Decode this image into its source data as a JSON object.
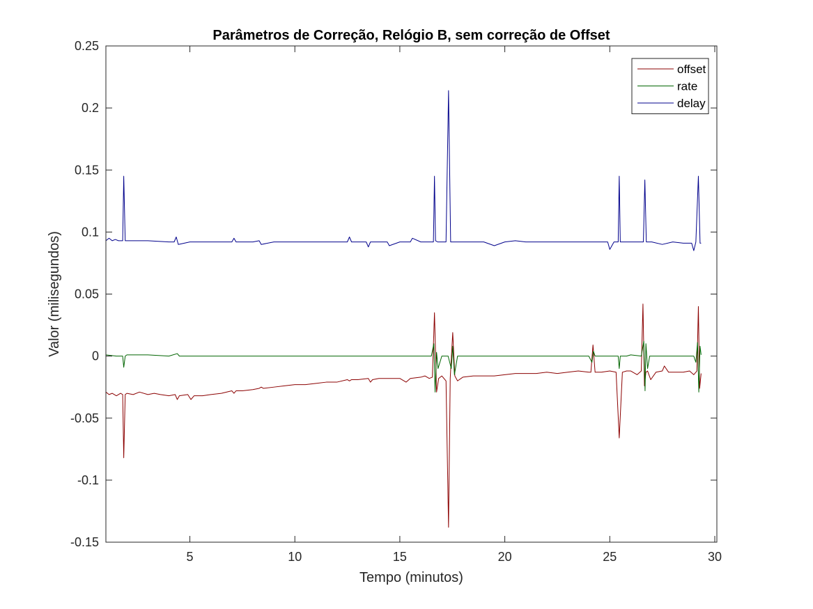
{
  "chart_data": {
    "type": "line",
    "title": "Parâmetros de Correção, Relógio B, sem correção de Offset",
    "xlabel": "Tempo (minutos)",
    "ylabel": "Valor (milisegundos)",
    "xlim": [
      1,
      30.1
    ],
    "ylim": [
      -0.15,
      0.25
    ],
    "xticks": [
      5,
      10,
      15,
      20,
      25,
      30
    ],
    "xtick_labels": [
      "5",
      "10",
      "15",
      "20",
      "25",
      "30"
    ],
    "yticks": [
      -0.15,
      -0.1,
      -0.05,
      0,
      0.05,
      0.1,
      0.15,
      0.2,
      0.25
    ],
    "ytick_labels": [
      "-0.15",
      "-0.1",
      "-0.05",
      "0",
      "0.05",
      "0.1",
      "0.15",
      "0.2",
      "0.25"
    ],
    "grid": false,
    "legend_position": "top-right",
    "series": [
      {
        "name": "offset",
        "color": "#8b0000",
        "x": [
          1.0,
          1.15,
          1.3,
          1.5,
          1.7,
          1.8,
          1.85,
          1.92,
          2.0,
          2.3,
          2.6,
          3.0,
          3.3,
          3.6,
          4.0,
          4.3,
          4.4,
          4.5,
          4.9,
          5.05,
          5.2,
          5.6,
          6.0,
          6.5,
          7.0,
          7.1,
          7.2,
          7.5,
          8.0,
          8.3,
          8.4,
          8.5,
          9.0,
          9.5,
          10.0,
          10.5,
          11.0,
          11.5,
          12.0,
          12.5,
          12.6,
          12.7,
          13.0,
          13.5,
          13.6,
          13.7,
          14.0,
          14.5,
          15.0,
          15.3,
          15.5,
          16.0,
          16.2,
          16.4,
          16.55,
          16.65,
          16.75,
          16.85,
          17.0,
          17.2,
          17.32,
          17.4,
          17.52,
          17.62,
          17.75,
          18.0,
          18.5,
          19.0,
          19.5,
          20.0,
          20.5,
          21.0,
          21.5,
          22.0,
          22.5,
          23.0,
          23.5,
          24.0,
          24.1,
          24.2,
          24.3,
          24.6,
          25.0,
          25.3,
          25.45,
          25.6,
          25.8,
          26.0,
          26.3,
          26.5,
          26.58,
          26.65,
          26.72,
          26.8,
          26.95,
          27.2,
          27.5,
          27.6,
          27.8,
          28.0,
          28.5,
          28.8,
          29.0,
          29.15,
          29.22,
          29.28,
          29.35
        ],
        "y": [
          -0.029,
          -0.031,
          -0.03,
          -0.032,
          -0.03,
          -0.031,
          -0.082,
          -0.031,
          -0.03,
          -0.031,
          -0.029,
          -0.031,
          -0.03,
          -0.031,
          -0.032,
          -0.031,
          -0.035,
          -0.032,
          -0.031,
          -0.035,
          -0.032,
          -0.032,
          -0.031,
          -0.03,
          -0.028,
          -0.03,
          -0.028,
          -0.028,
          -0.027,
          -0.026,
          -0.025,
          -0.026,
          -0.025,
          -0.024,
          -0.023,
          -0.023,
          -0.022,
          -0.021,
          -0.021,
          -0.019,
          -0.02,
          -0.019,
          -0.019,
          -0.018,
          -0.021,
          -0.019,
          -0.018,
          -0.018,
          -0.018,
          -0.021,
          -0.018,
          -0.017,
          -0.016,
          -0.018,
          -0.017,
          0.035,
          -0.029,
          -0.018,
          -0.016,
          -0.02,
          -0.138,
          -0.018,
          0.019,
          -0.016,
          -0.02,
          -0.017,
          -0.016,
          -0.016,
          -0.016,
          -0.015,
          -0.014,
          -0.014,
          -0.014,
          -0.013,
          -0.014,
          -0.013,
          -0.012,
          -0.013,
          -0.013,
          0.009,
          -0.013,
          -0.013,
          -0.012,
          -0.013,
          -0.066,
          -0.013,
          -0.012,
          -0.012,
          -0.015,
          -0.012,
          0.042,
          -0.024,
          -0.013,
          -0.012,
          -0.019,
          -0.013,
          -0.012,
          -0.008,
          -0.013,
          -0.013,
          -0.013,
          -0.012,
          -0.015,
          -0.012,
          0.04,
          -0.026,
          -0.014
        ]
      },
      {
        "name": "rate",
        "color": "#006400",
        "x": [
          1.0,
          1.5,
          1.8,
          1.85,
          1.92,
          2.0,
          3.0,
          4.0,
          4.4,
          4.5,
          5.0,
          6.0,
          7.0,
          8.0,
          9.0,
          10.0,
          11.0,
          12.0,
          13.0,
          13.5,
          14.0,
          15.0,
          16.0,
          16.5,
          16.62,
          16.68,
          16.75,
          16.82,
          17.0,
          17.3,
          17.45,
          17.52,
          17.6,
          17.75,
          18.0,
          19.0,
          20.0,
          21.0,
          22.0,
          23.0,
          24.0,
          24.15,
          24.22,
          24.3,
          24.5,
          25.0,
          25.4,
          25.45,
          25.5,
          25.8,
          26.0,
          26.5,
          26.62,
          26.68,
          26.72,
          26.8,
          26.9,
          27.0,
          27.5,
          28.0,
          28.5,
          29.0,
          29.1,
          29.18,
          29.24,
          29.3,
          29.35
        ],
        "y": [
          0.001,
          0.0,
          0.0,
          -0.009,
          0.0,
          0.001,
          0.001,
          0.0,
          0.002,
          0.0,
          0.0,
          0.0,
          0.0,
          0.0,
          0.0,
          0.0,
          0.0,
          0.0,
          0.0,
          0.0,
          0.0,
          0.0,
          0.0,
          0.0,
          0.01,
          -0.029,
          0.003,
          -0.01,
          0.0,
          0.0,
          -0.01,
          0.008,
          -0.015,
          0.0,
          0.0,
          0.0,
          0.0,
          0.0,
          0.0,
          0.0,
          0.0,
          -0.005,
          0.004,
          0.0,
          0.0,
          0.0,
          0.0,
          -0.01,
          0.0,
          0.0,
          0.001,
          0.0,
          0.012,
          -0.028,
          0.01,
          -0.01,
          0.0,
          0.0,
          0.0,
          0.0,
          0.0,
          0.0,
          -0.005,
          0.011,
          -0.029,
          0.008,
          0.001
        ]
      },
      {
        "name": "delay",
        "color": "#00008b",
        "x": [
          1.0,
          1.15,
          1.3,
          1.45,
          1.6,
          1.8,
          1.85,
          1.92,
          2.0,
          3.0,
          4.0,
          4.25,
          4.35,
          4.45,
          5.0,
          6.0,
          7.0,
          7.1,
          7.2,
          8.0,
          8.3,
          8.4,
          9.0,
          10.0,
          11.0,
          12.0,
          12.5,
          12.6,
          12.7,
          13.0,
          13.4,
          13.5,
          13.6,
          14.0,
          14.4,
          14.5,
          15.0,
          15.5,
          15.6,
          16.0,
          16.5,
          16.6,
          16.65,
          16.7,
          16.8,
          17.0,
          17.2,
          17.32,
          17.42,
          17.6,
          17.8,
          18.0,
          19.0,
          19.5,
          20.0,
          20.5,
          21.0,
          21.5,
          22.0,
          22.5,
          23.0,
          23.5,
          24.0,
          24.5,
          24.9,
          25.0,
          25.2,
          25.4,
          25.45,
          25.5,
          25.7,
          26.0,
          26.4,
          26.6,
          26.67,
          26.74,
          26.85,
          27.0,
          27.5,
          28.0,
          28.5,
          28.9,
          29.0,
          29.1,
          29.22,
          29.3,
          29.35
        ],
        "y": [
          0.093,
          0.095,
          0.093,
          0.094,
          0.093,
          0.093,
          0.145,
          0.093,
          0.093,
          0.093,
          0.092,
          0.092,
          0.096,
          0.09,
          0.092,
          0.092,
          0.092,
          0.095,
          0.092,
          0.092,
          0.093,
          0.09,
          0.092,
          0.092,
          0.092,
          0.092,
          0.092,
          0.096,
          0.092,
          0.092,
          0.092,
          0.088,
          0.092,
          0.092,
          0.092,
          0.089,
          0.092,
          0.092,
          0.095,
          0.092,
          0.092,
          0.092,
          0.145,
          0.093,
          0.092,
          0.092,
          0.092,
          0.214,
          0.092,
          0.092,
          0.092,
          0.092,
          0.092,
          0.089,
          0.092,
          0.093,
          0.092,
          0.092,
          0.092,
          0.092,
          0.092,
          0.092,
          0.092,
          0.092,
          0.092,
          0.086,
          0.092,
          0.092,
          0.145,
          0.092,
          0.092,
          0.092,
          0.092,
          0.092,
          0.142,
          0.092,
          0.092,
          0.092,
          0.09,
          0.092,
          0.091,
          0.091,
          0.085,
          0.092,
          0.145,
          0.091,
          0.091
        ]
      }
    ]
  }
}
